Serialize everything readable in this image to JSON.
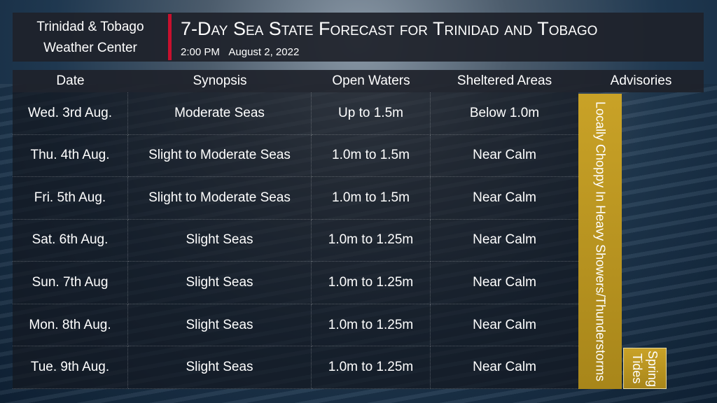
{
  "header": {
    "org": [
      "Trinidad & Tobago",
      "Weather Center"
    ],
    "title": "7-Day Sea State Forecast for Trinidad and Tobago",
    "time": "2:00 PM",
    "date": "August 2, 2022"
  },
  "table": {
    "columns": [
      "Date",
      "Synopsis",
      "Open Waters",
      "Sheltered Areas",
      "Advisories"
    ],
    "rows": [
      [
        "Wed. 3rd Aug.",
        "Moderate Seas",
        "Up to 1.5m",
        "Below 1.0m"
      ],
      [
        "Thu. 4th Aug.",
        "Slight to Moderate Seas",
        "1.0m to 1.5m",
        "Near Calm"
      ],
      [
        "Fri. 5th Aug.",
        "Slight to Moderate Seas",
        "1.0m to 1.5m",
        "Near Calm"
      ],
      [
        "Sat. 6th Aug.",
        "Slight Seas",
        "1.0m to 1.25m",
        "Near Calm"
      ],
      [
        "Sun. 7th Aug",
        "Slight Seas",
        "1.0m to 1.25m",
        "Near Calm"
      ],
      [
        "Mon. 8th Aug.",
        "Slight Seas",
        "1.0m to 1.25m",
        "Near Calm"
      ],
      [
        "Tue. 9th Aug.",
        "Slight Seas",
        "1.0m to 1.25m",
        "Near Calm"
      ]
    ],
    "advisories": [
      "Locally Choppy In Heavy Showers/Thunderstorms",
      "Spring Tides"
    ]
  }
}
